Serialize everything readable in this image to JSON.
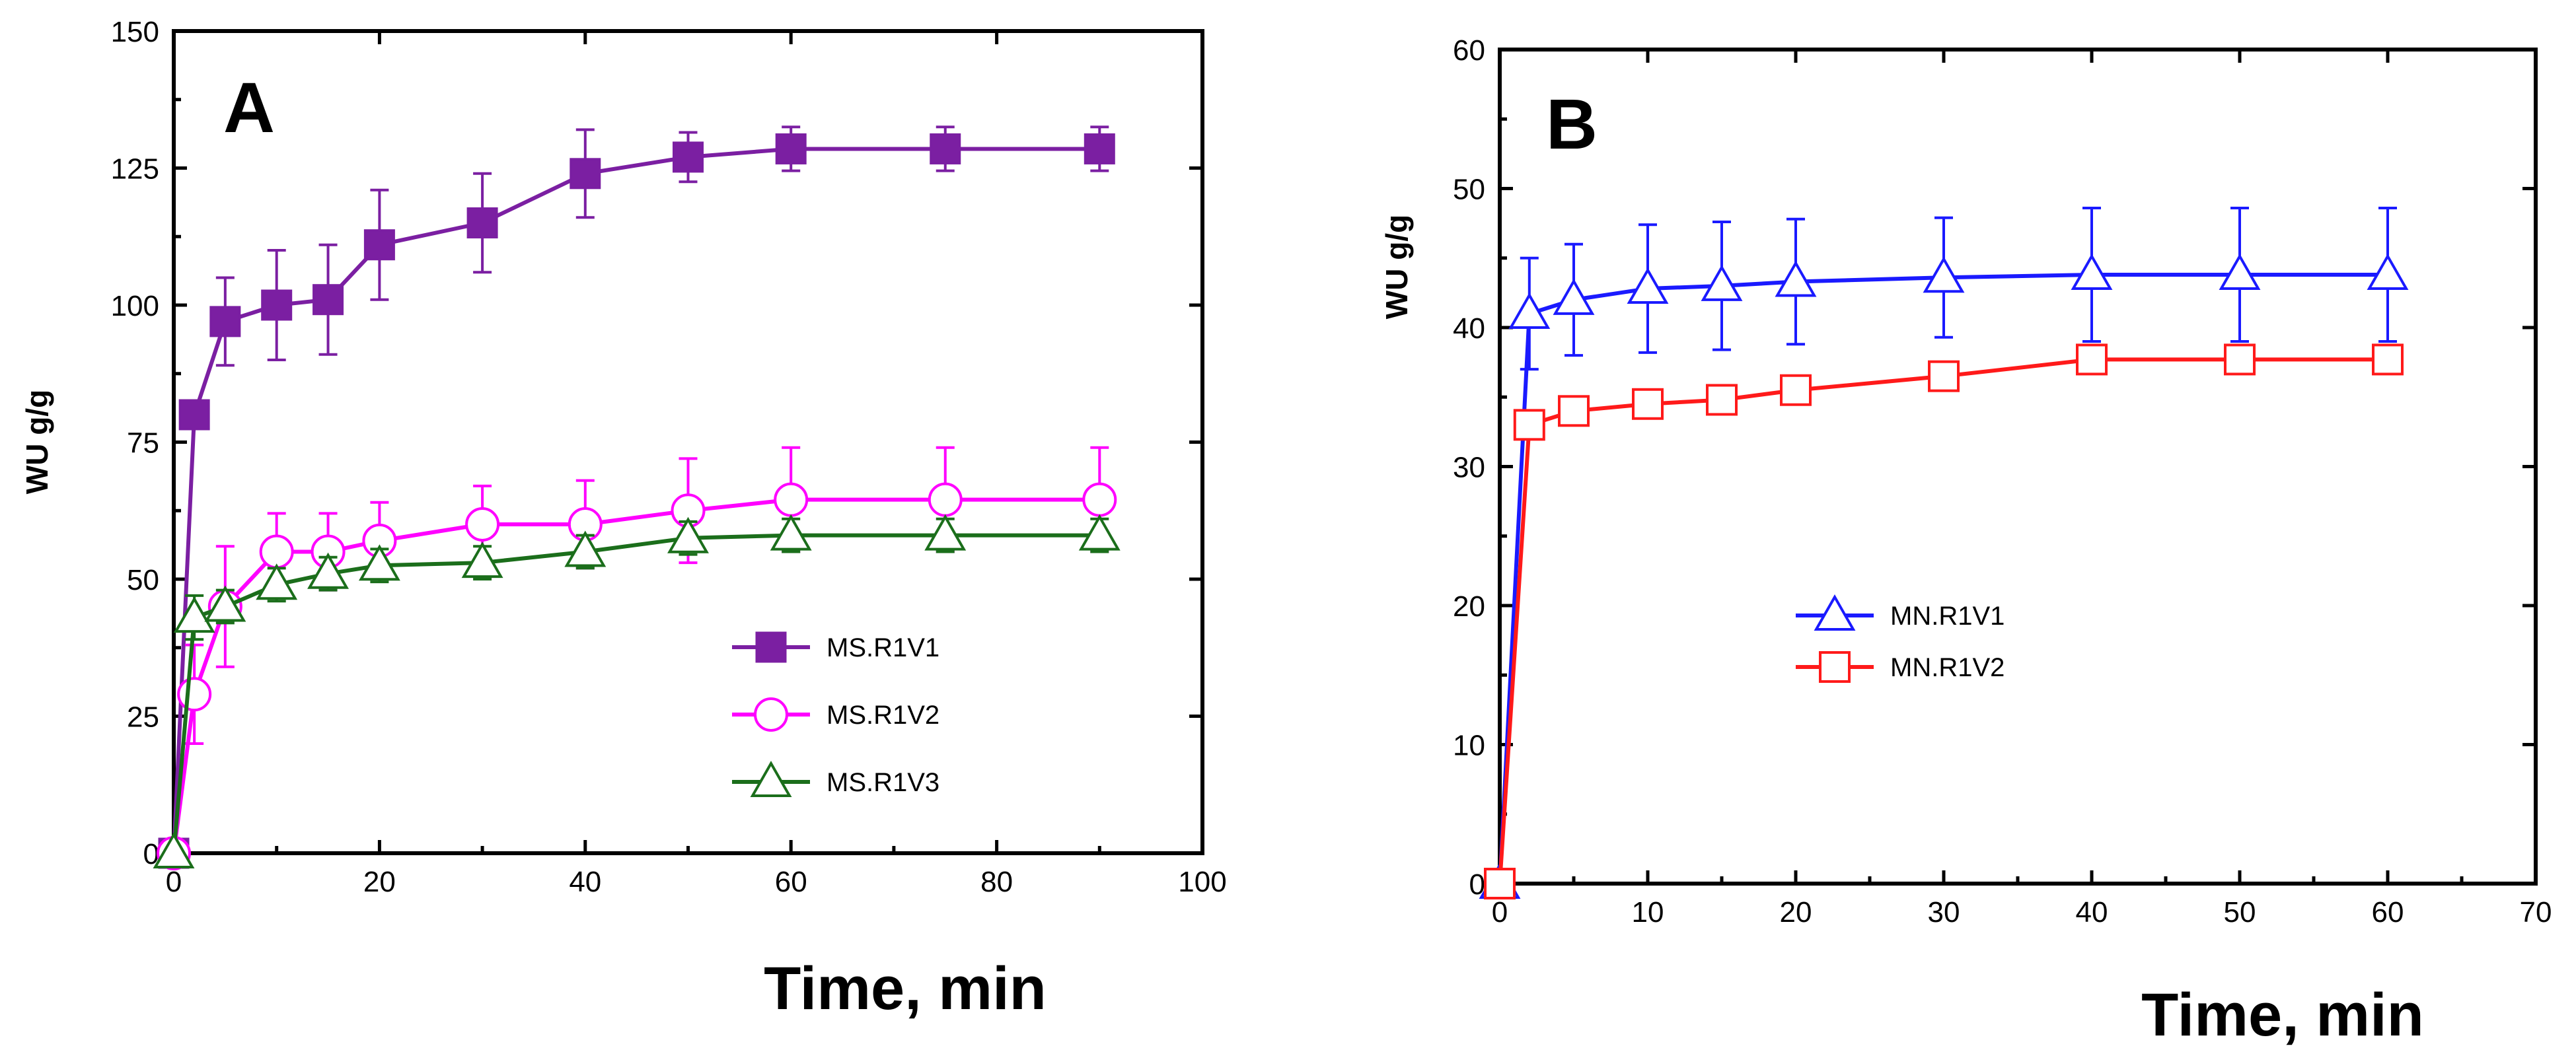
{
  "chart_data": [
    {
      "type": "line",
      "panel_label": "A",
      "xlabel": "Time, min",
      "ylabel": "WU g/g",
      "xlim": [
        0,
        100
      ],
      "ylim": [
        0,
        150
      ],
      "xticks": [
        0,
        20,
        40,
        60,
        80,
        100
      ],
      "xtick_labels": [
        "0",
        "20",
        "40",
        "60",
        "80",
        "100"
      ],
      "yticks": [
        0,
        25,
        50,
        75,
        100,
        125,
        150
      ],
      "ytick_labels": [
        "0",
        "25",
        "50",
        "75",
        "100",
        "125",
        "150"
      ],
      "legend_position": "center-right",
      "series": [
        {
          "name": "MS.R1V1",
          "color": "#7b1fa2",
          "marker": "square-filled",
          "x": [
            0,
            2,
            5,
            10,
            15,
            20,
            30,
            40,
            50,
            60,
            75,
            90
          ],
          "y": [
            0,
            80,
            97,
            100,
            101,
            111,
            115,
            124,
            127,
            128.5,
            128.5,
            128.5
          ],
          "err": [
            0,
            0,
            8,
            10,
            10,
            10,
            9,
            8,
            4.5,
            4,
            4,
            4
          ]
        },
        {
          "name": "MS.R1V2",
          "color": "#ff00ff",
          "marker": "circle-open",
          "x": [
            0,
            2,
            5,
            10,
            15,
            20,
            30,
            40,
            50,
            60,
            75,
            90
          ],
          "y": [
            0,
            29,
            45,
            55,
            55,
            57,
            60,
            60,
            62.5,
            64.5,
            64.5,
            64.5
          ],
          "err": [
            0,
            9,
            11,
            7,
            7,
            7,
            7,
            8,
            9.5,
            9.5,
            9.5,
            9.5
          ]
        },
        {
          "name": "MS.R1V3",
          "color": "#1b6e1b",
          "marker": "triangle-open",
          "x": [
            0,
            2,
            5,
            10,
            15,
            20,
            30,
            40,
            50,
            60,
            75,
            90
          ],
          "y": [
            0,
            43,
            45,
            49,
            51,
            52.5,
            53,
            55,
            57.5,
            58,
            58,
            58
          ],
          "err": [
            0,
            4,
            3,
            3,
            3,
            3,
            3,
            3,
            3,
            3,
            3,
            3
          ]
        }
      ]
    },
    {
      "type": "line",
      "panel_label": "B",
      "xlabel": "Time, min",
      "ylabel": "WU g/g",
      "xlim": [
        0,
        70
      ],
      "ylim": [
        0,
        60
      ],
      "xticks": [
        0,
        10,
        20,
        30,
        40,
        50,
        60,
        70
      ],
      "xtick_labels": [
        "0",
        "10",
        "20",
        "30",
        "40",
        "50",
        "60",
        "70"
      ],
      "yticks": [
        0,
        10,
        20,
        30,
        40,
        50,
        60
      ],
      "ytick_labels": [
        "0",
        "10",
        "20",
        "30",
        "40",
        "50",
        "60"
      ],
      "legend_position": "center",
      "series": [
        {
          "name": "MN.R1V1",
          "color": "#1a1aff",
          "marker": "triangle-open",
          "x": [
            0,
            2,
            5,
            10,
            15,
            20,
            30,
            40,
            50,
            60
          ],
          "y": [
            0,
            41,
            42,
            42.8,
            43,
            43.3,
            43.6,
            43.8,
            43.8,
            43.8
          ],
          "err": [
            0,
            4,
            4,
            4.6,
            4.6,
            4.5,
            4.3,
            4.8,
            4.8,
            4.8
          ]
        },
        {
          "name": "MN.R1V2",
          "color": "#ff1a1a",
          "marker": "square-open",
          "x": [
            0,
            2,
            5,
            10,
            15,
            20,
            30,
            40,
            50,
            60
          ],
          "y": [
            0,
            33,
            34,
            34.5,
            34.8,
            35.5,
            36.5,
            37.7,
            37.7,
            37.7
          ],
          "err": [
            0,
            0.5,
            0.6,
            0.6,
            0.7,
            0.7,
            0.8,
            0.8,
            0.8,
            0.8
          ]
        }
      ]
    }
  ]
}
